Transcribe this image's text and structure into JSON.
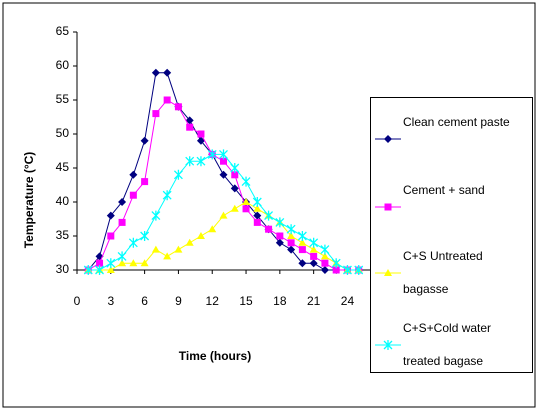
{
  "chart_data": {
    "type": "line",
    "x_label": "Time (hours)",
    "y_label": "Temperature (°C)",
    "x": [
      1,
      2,
      3,
      4,
      5,
      6,
      7,
      8,
      9,
      10,
      11,
      12,
      13,
      14,
      15,
      16,
      17,
      18,
      19,
      20,
      21,
      22,
      23,
      24,
      25
    ],
    "series": [
      {
        "name": "Clean cement paste",
        "color": "#000080",
        "marker": "diamond",
        "values": [
          30,
          32,
          38,
          40,
          44,
          49,
          59,
          59,
          54,
          52,
          49,
          47,
          44,
          42,
          40,
          38,
          36,
          34,
          33,
          31,
          31,
          30,
          30,
          30,
          30
        ]
      },
      {
        "name": "Cement + sand",
        "color": "#ff00ff",
        "marker": "square",
        "values": [
          30,
          31,
          35,
          37,
          41,
          43,
          53,
          55,
          54,
          51,
          50,
          47,
          46,
          44,
          39,
          37,
          36,
          35,
          34,
          33,
          32,
          31,
          30,
          30,
          30
        ]
      },
      {
        "name": "C+S Untreated bagasse",
        "color": "#ffff00",
        "marker": "triangle",
        "values": [
          30,
          30,
          30,
          31,
          31,
          31,
          33,
          32,
          33,
          34,
          35,
          36,
          38,
          39,
          40,
          39,
          38,
          37,
          35,
          34,
          33,
          32,
          31,
          30,
          30
        ]
      },
      {
        "name": "C+S+Cold water treated bagase",
        "color": "#00ffff",
        "marker": "star",
        "values": [
          30,
          30,
          31,
          32,
          34,
          35,
          38,
          41,
          44,
          46,
          46,
          47,
          47,
          45,
          43,
          40,
          38,
          37,
          36,
          35,
          34,
          33,
          31,
          30,
          30
        ]
      }
    ],
    "xlim": [
      0,
      26
    ],
    "xticks": [
      0,
      3,
      6,
      9,
      12,
      15,
      18,
      21,
      24
    ],
    "ylim": [
      30,
      65
    ],
    "yticks": [
      30,
      35,
      40,
      45,
      50,
      55,
      60,
      65
    ],
    "legend": "right"
  }
}
